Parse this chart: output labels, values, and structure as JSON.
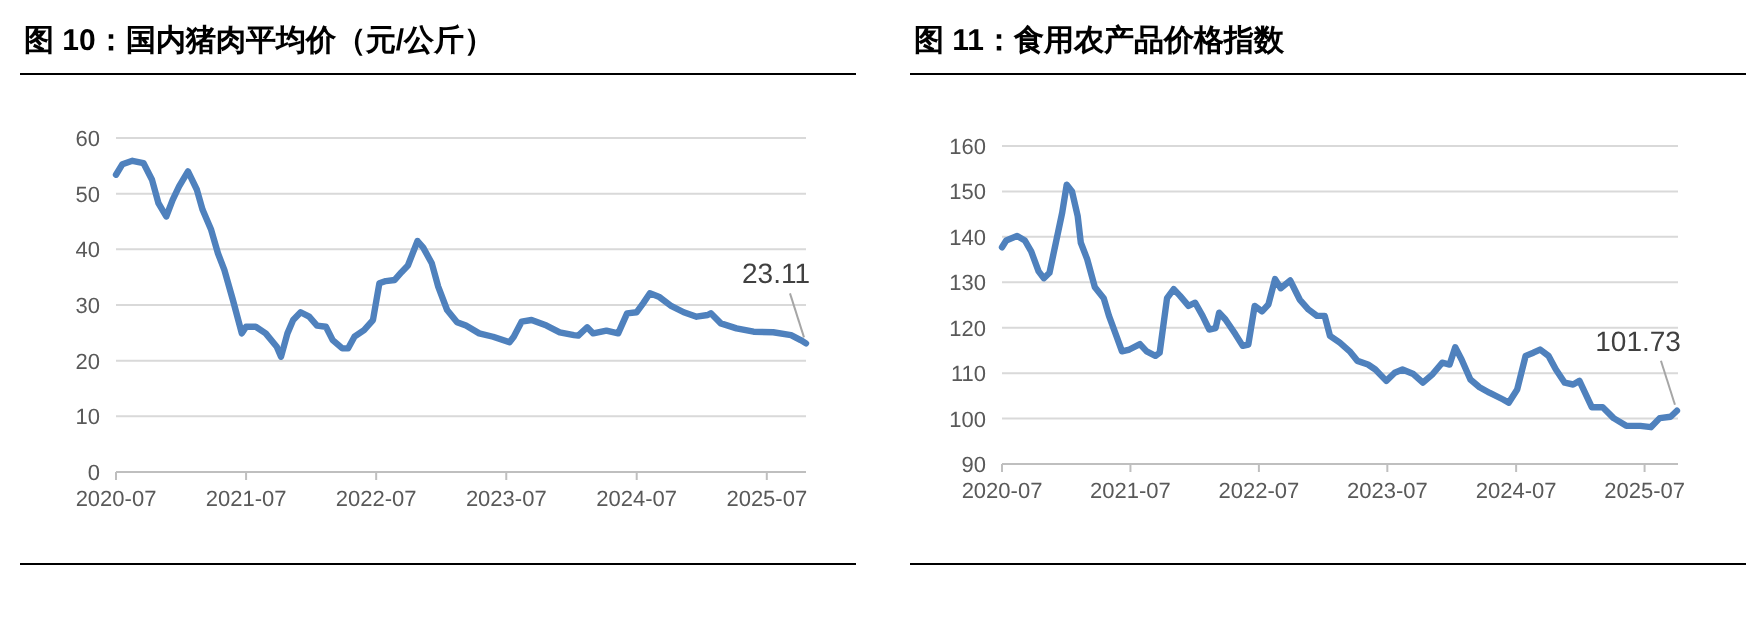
{
  "chart_data": [
    {
      "type": "line",
      "title": "图 10：国内猪肉平均价（元/公斤）",
      "xlim": [
        "2020-07-01",
        "2025-10-19"
      ],
      "xticks": [
        "2020-07",
        "2021-07",
        "2022-07",
        "2023-07",
        "2024-07",
        "2025-07"
      ],
      "ylim": [
        0,
        60
      ],
      "yticks": [
        0,
        10,
        20,
        30,
        40,
        50,
        60
      ],
      "grid": "y",
      "annotations": [
        {
          "text": "23.11",
          "x": "2025-10-19",
          "y": 23.11
        }
      ],
      "x": [
        "2020-07-01",
        "2020-07-19",
        "2020-08-16",
        "2020-09-16",
        "2020-10-10",
        "2020-10-28",
        "2020-11-19",
        "2020-12-07",
        "2020-12-25",
        "2021-01-19",
        "2021-02-13",
        "2021-03-01",
        "2021-03-25",
        "2021-04-13",
        "2021-05-01",
        "2021-05-25",
        "2021-06-19",
        "2021-07-01",
        "2021-07-28",
        "2021-08-25",
        "2021-09-25",
        "2021-10-07",
        "2021-10-25",
        "2021-11-10",
        "2021-12-01",
        "2021-12-25",
        "2022-01-16",
        "2022-02-10",
        "2022-03-01",
        "2022-03-28",
        "2022-04-13",
        "2022-05-01",
        "2022-05-28",
        "2022-06-22",
        "2022-07-10",
        "2022-07-28",
        "2022-08-22",
        "2022-09-10",
        "2022-09-28",
        "2022-10-25",
        "2022-11-10",
        "2022-12-04",
        "2022-12-22",
        "2023-01-16",
        "2023-02-13",
        "2023-03-10",
        "2023-04-16",
        "2023-05-25",
        "2023-07-10",
        "2023-07-22",
        "2023-08-13",
        "2023-09-10",
        "2023-10-22",
        "2023-11-28",
        "2024-01-07",
        "2024-01-19",
        "2024-02-13",
        "2024-03-01",
        "2024-04-07",
        "2024-05-10",
        "2024-06-04",
        "2024-07-01",
        "2024-07-19",
        "2024-08-07",
        "2024-09-01",
        "2024-10-04",
        "2024-11-10",
        "2024-12-16",
        "2025-01-16",
        "2025-01-25",
        "2025-02-22",
        "2025-04-07",
        "2025-05-25",
        "2025-07-19",
        "2025-09-07",
        "2025-10-04",
        "2025-10-19"
      ],
      "series": [
        {
          "color": "#4f81bd",
          "values": [
            53.4,
            55.3,
            55.9,
            55.5,
            52.5,
            48.3,
            45.9,
            48.9,
            51.3,
            54.0,
            50.7,
            47.1,
            43.5,
            39.3,
            36.3,
            30.9,
            24.9,
            26.1,
            26.1,
            24.9,
            22.5,
            20.7,
            24.9,
            27.3,
            28.7,
            27.9,
            26.3,
            26.1,
            23.7,
            22.2,
            22.2,
            24.3,
            25.5,
            27.3,
            33.9,
            34.3,
            34.5,
            35.9,
            37.1,
            41.5,
            40.3,
            37.5,
            33.3,
            29.1,
            26.9,
            26.3,
            24.9,
            24.3,
            23.3,
            24.3,
            27.0,
            27.3,
            26.3,
            25.1,
            24.6,
            24.5,
            26.0,
            24.9,
            25.4,
            24.9,
            28.5,
            28.7,
            30.3,
            32.1,
            31.5,
            29.9,
            28.7,
            27.9,
            28.2,
            28.5,
            26.7,
            25.8,
            25.2,
            25.1,
            24.6,
            23.7,
            23.11
          ]
        }
      ]
    },
    {
      "type": "line",
      "title": "图 11：食用农产品价格指数",
      "xlim": [
        "2020-07-01",
        "2025-10-04"
      ],
      "xticks": [
        "2020-07",
        "2021-07",
        "2022-07",
        "2023-07",
        "2024-07",
        "2025-07"
      ],
      "ylim": [
        90,
        160
      ],
      "yticks": [
        90,
        100,
        110,
        120,
        130,
        140,
        150,
        160
      ],
      "grid": "y",
      "annotations": [
        {
          "text": "101.73",
          "x": "2025-10-01",
          "y": 101.73
        }
      ],
      "x": [
        "2020-07-01",
        "2020-07-13",
        "2020-08-13",
        "2020-09-04",
        "2020-09-22",
        "2020-10-13",
        "2020-10-28",
        "2020-11-13",
        "2020-12-01",
        "2020-12-19",
        "2021-01-01",
        "2021-01-16",
        "2021-02-01",
        "2021-02-10",
        "2021-02-28",
        "2021-03-22",
        "2021-04-16",
        "2021-05-01",
        "2021-05-22",
        "2021-06-07",
        "2021-06-28",
        "2021-07-28",
        "2021-08-16",
        "2021-09-10",
        "2021-09-22",
        "2021-10-13",
        "2021-11-01",
        "2021-11-19",
        "2021-12-13",
        "2022-01-01",
        "2022-01-22",
        "2022-02-10",
        "2022-02-28",
        "2022-03-10",
        "2022-03-28",
        "2022-04-25",
        "2022-05-16",
        "2022-06-01",
        "2022-06-19",
        "2022-07-10",
        "2022-07-28",
        "2022-08-16",
        "2022-09-01",
        "2022-09-28",
        "2022-10-25",
        "2022-11-19",
        "2022-12-13",
        "2023-01-04",
        "2023-01-19",
        "2023-02-16",
        "2023-03-16",
        "2023-04-07",
        "2023-05-07",
        "2023-05-28",
        "2023-06-28",
        "2023-07-22",
        "2023-08-13",
        "2023-09-13",
        "2023-10-10",
        "2023-11-07",
        "2023-12-04",
        "2023-12-25",
        "2024-01-10",
        "2024-01-28",
        "2024-02-22",
        "2024-03-19",
        "2024-04-16",
        "2024-05-25",
        "2024-06-10",
        "2024-07-04",
        "2024-07-28",
        "2024-08-19",
        "2024-09-07",
        "2024-10-01",
        "2024-10-22",
        "2024-11-16",
        "2024-12-10",
        "2024-12-28",
        "2025-02-01",
        "2025-03-04",
        "2025-04-04",
        "2025-05-10",
        "2025-06-19",
        "2025-07-19",
        "2025-08-13",
        "2025-09-13",
        "2025-10-01"
      ],
      "series": [
        {
          "color": "#4f81bd",
          "values": [
            137.7,
            139.2,
            140.2,
            139.2,
            136.8,
            132.4,
            130.9,
            132.1,
            138.7,
            145.3,
            151.5,
            150.0,
            144.6,
            138.7,
            135.1,
            128.9,
            126.5,
            122.6,
            118.2,
            114.8,
            115.2,
            116.4,
            114.8,
            113.8,
            114.5,
            126.5,
            128.5,
            127.0,
            124.8,
            125.5,
            122.6,
            119.6,
            119.9,
            123.3,
            121.8,
            118.6,
            116.0,
            116.3,
            124.8,
            123.6,
            125.1,
            130.7,
            128.7,
            130.4,
            126.2,
            124.0,
            122.6,
            122.6,
            118.2,
            116.7,
            114.8,
            112.7,
            111.9,
            110.8,
            108.3,
            110.1,
            110.8,
            109.8,
            107.9,
            109.8,
            112.3,
            111.9,
            115.7,
            113.0,
            108.6,
            106.9,
            105.7,
            104.2,
            103.5,
            106.4,
            113.8,
            114.5,
            115.2,
            113.8,
            110.8,
            107.9,
            107.5,
            108.3,
            102.5,
            102.5,
            100.1,
            98.4,
            98.4,
            98.1,
            100.1,
            100.4,
            101.73
          ]
        }
      ]
    }
  ]
}
